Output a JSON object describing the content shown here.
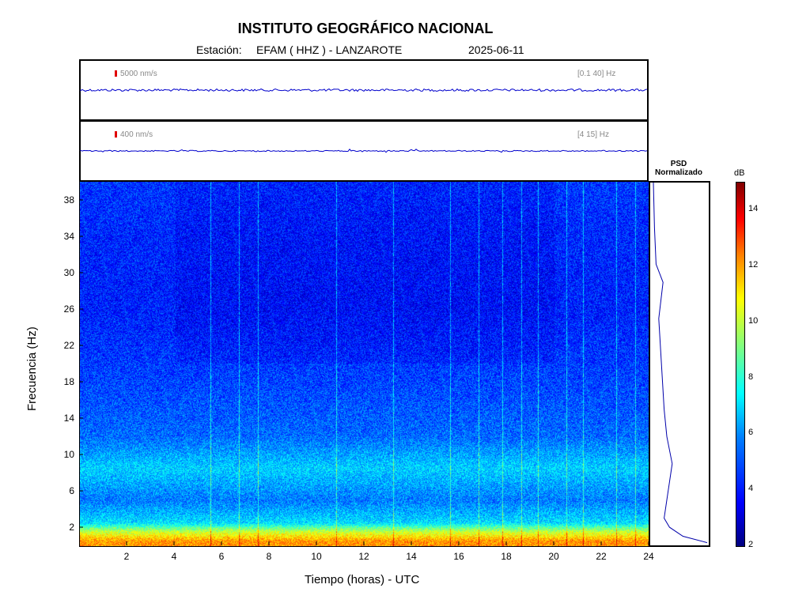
{
  "header": {
    "title": "INSTITUTO GEOGRÁFICO NACIONAL",
    "station_prefix": "Estación:",
    "station": "EFAM ( HHZ ) - LANZAROTE",
    "date": "2025-06-11"
  },
  "traces": [
    {
      "scale_label": "5000 nm/s",
      "band_label": "[0.1 40] Hz",
      "color": "#0000cc"
    },
    {
      "scale_label": "400 nm/s",
      "band_label": "[4 15] Hz",
      "color": "#0000cc"
    }
  ],
  "psd": {
    "title_line1": "PSD",
    "title_line2": "Normalizado"
  },
  "colorbar": {
    "unit": "dB",
    "ticks": [
      2,
      4,
      6,
      8,
      10,
      12,
      14
    ],
    "range": [
      2,
      15
    ]
  },
  "chart_data": {
    "type": "heatmap",
    "xlabel": "Tiempo (horas) - UTC",
    "ylabel": "Frecuencia  (Hz)",
    "xlim": [
      0,
      24
    ],
    "ylim": [
      0,
      40
    ],
    "xticks": [
      2,
      4,
      6,
      8,
      10,
      12,
      14,
      16,
      18,
      20,
      22,
      24
    ],
    "yticks": [
      2,
      6,
      10,
      14,
      18,
      22,
      26,
      30,
      34,
      38
    ],
    "x_tick_labels": [
      "2",
      "4",
      "6",
      "8",
      "10",
      "12",
      "14",
      "16",
      "18",
      "20",
      "22",
      "24"
    ],
    "y_tick_labels": [
      "2",
      "6",
      "10",
      "14",
      "18",
      "22",
      "26",
      "30",
      "34",
      "38"
    ],
    "band_profile_db": [
      {
        "freq": 0.5,
        "db": 11.5
      },
      {
        "freq": 1.5,
        "db": 9.5
      },
      {
        "freq": 2.5,
        "db": 6.5
      },
      {
        "freq": 5,
        "db": 5.2
      },
      {
        "freq": 8.5,
        "db": 6.3
      },
      {
        "freq": 12,
        "db": 5.0
      },
      {
        "freq": 18,
        "db": 4.5
      },
      {
        "freq": 26,
        "db": 4.0
      },
      {
        "freq": 34,
        "db": 4.1
      },
      {
        "freq": 39,
        "db": 4.3
      }
    ],
    "vertical_events_hours": [
      5.5,
      6.7,
      7.5,
      10.8,
      13.2,
      15.6,
      16.8,
      17.8,
      18.6,
      19.3,
      20.5,
      21.2,
      22.6,
      23.4
    ],
    "psd_profile": [
      {
        "freq": 0.3,
        "norm": 1.0
      },
      {
        "freq": 1,
        "norm": 0.55
      },
      {
        "freq": 2,
        "norm": 0.3
      },
      {
        "freq": 3,
        "norm": 0.2
      },
      {
        "freq": 5,
        "norm": 0.25
      },
      {
        "freq": 7,
        "norm": 0.3
      },
      {
        "freq": 9,
        "norm": 0.35
      },
      {
        "freq": 12,
        "norm": 0.25
      },
      {
        "freq": 15,
        "norm": 0.2
      },
      {
        "freq": 20,
        "norm": 0.15
      },
      {
        "freq": 25,
        "norm": 0.1
      },
      {
        "freq": 29,
        "norm": 0.18
      },
      {
        "freq": 31,
        "norm": 0.05
      },
      {
        "freq": 35,
        "norm": 0.02
      },
      {
        "freq": 40,
        "norm": 0.0
      }
    ]
  }
}
